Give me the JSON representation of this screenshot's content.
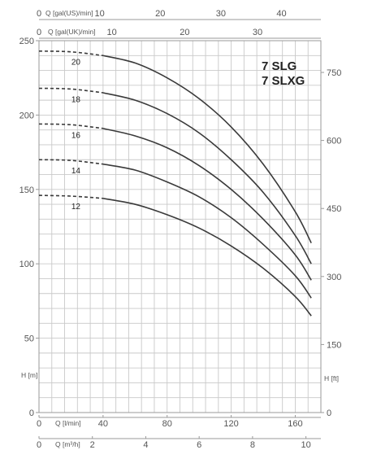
{
  "chart_data": {
    "type": "line",
    "title_lines": [
      "7 SLG",
      "7 SLXG"
    ],
    "x_axes": {
      "l_min": {
        "label": "Q [l/min]",
        "ticks": [
          0,
          40,
          80,
          120,
          160
        ],
        "range": [
          0,
          176
        ]
      },
      "m3_h": {
        "label": "Q [m³/h]",
        "ticks": [
          0,
          2,
          4,
          6,
          8,
          10
        ],
        "range": [
          0,
          10.56
        ]
      },
      "gal_us": {
        "label": "Q [gal(US)/min]",
        "ticks": [
          0,
          10,
          20,
          30,
          40
        ],
        "range": [
          0,
          46.5
        ]
      },
      "gal_uk": {
        "label": "Q [gal(UK)/min]",
        "ticks": [
          0,
          10,
          20,
          30
        ],
        "range": [
          0,
          38.7
        ]
      }
    },
    "y_axes": {
      "m": {
        "label": "H [m]",
        "ticks": [
          0,
          50,
          100,
          150,
          200,
          250
        ],
        "range": [
          0,
          250
        ]
      },
      "ft": {
        "label": "H [ft]",
        "ticks": [
          0,
          150,
          300,
          450,
          600,
          750
        ],
        "range": [
          0,
          820
        ]
      }
    },
    "grid": true,
    "dashed_until_l_min": 40,
    "series": [
      {
        "name": "20",
        "x": [
          0,
          20,
          40,
          60,
          80,
          100,
          120,
          140,
          160,
          170
        ],
        "y": [
          243,
          242.5,
          240,
          235,
          225,
          211,
          192,
          167,
          135,
          114
        ]
      },
      {
        "name": "18",
        "x": [
          0,
          20,
          40,
          60,
          80,
          100,
          120,
          140,
          160,
          170
        ],
        "y": [
          218,
          217.5,
          215,
          210,
          201,
          188,
          170,
          148,
          119,
          100
        ]
      },
      {
        "name": "16",
        "x": [
          0,
          20,
          40,
          60,
          80,
          100,
          120,
          140,
          160,
          170
        ],
        "y": [
          194,
          193.5,
          191,
          186,
          178,
          166,
          150,
          130,
          106,
          89
        ]
      },
      {
        "name": "14",
        "x": [
          0,
          20,
          40,
          60,
          80,
          100,
          120,
          140,
          160,
          170
        ],
        "y": [
          170,
          169.5,
          167,
          163,
          155,
          145,
          131,
          113,
          92,
          77
        ]
      },
      {
        "name": "12",
        "x": [
          0,
          20,
          40,
          60,
          80,
          100,
          120,
          140,
          160,
          170
        ],
        "y": [
          146,
          145.5,
          144,
          140,
          133,
          124,
          112,
          97,
          78,
          65
        ]
      }
    ]
  }
}
